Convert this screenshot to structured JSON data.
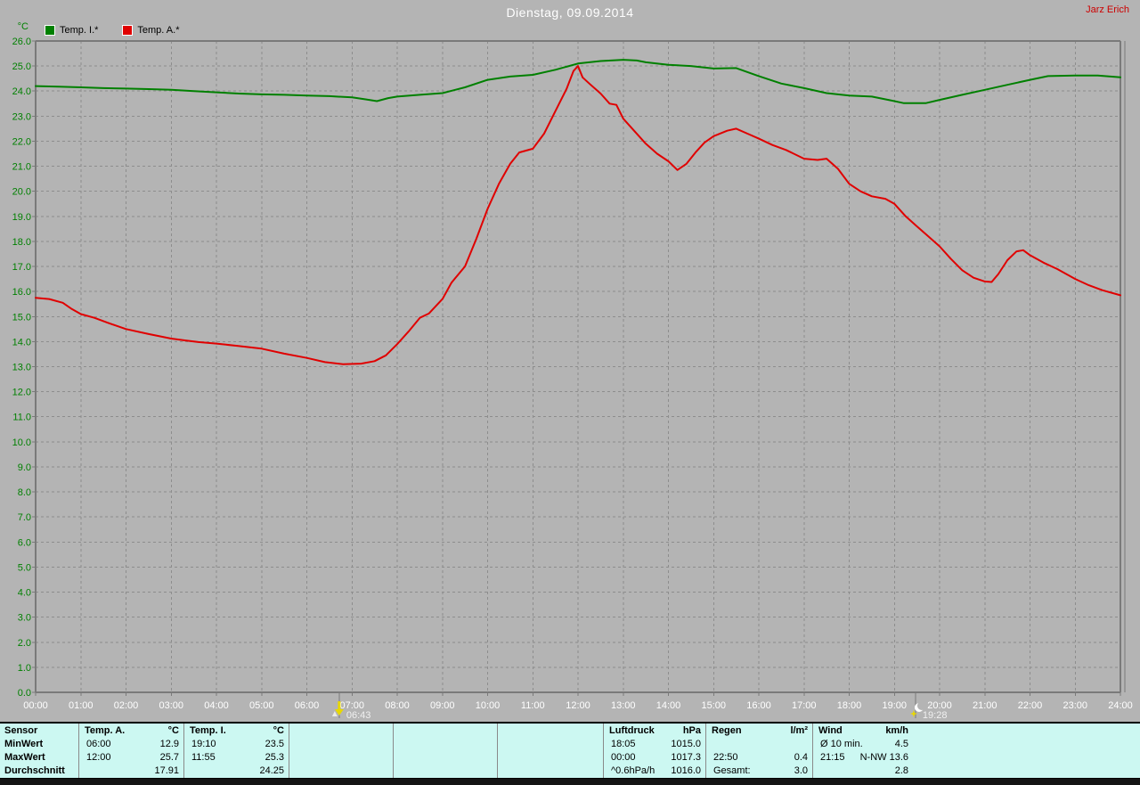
{
  "header": {
    "title": "Dienstag, 09.09.2014",
    "user": "Jarz Erich"
  },
  "legend": {
    "items": [
      {
        "label": "Temp. I.*",
        "color": "#008000"
      },
      {
        "label": "Temp. A.*",
        "color": "#e00000"
      }
    ]
  },
  "chart_data": {
    "type": "line",
    "title": "Dienstag, 09.09.2014",
    "xlabel": "",
    "ylabel": "°C",
    "ylim": [
      0,
      26
    ],
    "xlim_hours": [
      0,
      24
    ],
    "grid": true,
    "legend_position": "top-left",
    "y_ticks": [
      "0.0",
      "1.0",
      "2.0",
      "3.0",
      "4.0",
      "5.0",
      "6.0",
      "7.0",
      "8.0",
      "9.0",
      "10.0",
      "11.0",
      "12.0",
      "13.0",
      "14.0",
      "15.0",
      "16.0",
      "17.0",
      "18.0",
      "19.0",
      "20.0",
      "21.0",
      "22.0",
      "23.0",
      "24.0",
      "25.0",
      "26.0"
    ],
    "x_ticks": [
      "00:00",
      "01:00",
      "02:00",
      "03:00",
      "04:00",
      "05:00",
      "06:00",
      "07:00",
      "08:00",
      "09:00",
      "10:00",
      "11:00",
      "12:00",
      "13:00",
      "14:00",
      "15:00",
      "16:00",
      "17:00",
      "18:00",
      "19:00",
      "20:00",
      "21:00",
      "22:00",
      "23:00",
      "24:00"
    ],
    "series": [
      {
        "name": "Temp. I.*",
        "color": "#008000",
        "points": [
          [
            0,
            24.2
          ],
          [
            0.5,
            24.18
          ],
          [
            1,
            24.15
          ],
          [
            1.5,
            24.12
          ],
          [
            2,
            24.1
          ],
          [
            2.5,
            24.08
          ],
          [
            3,
            24.05
          ],
          [
            3.5,
            24.0
          ],
          [
            4,
            23.95
          ],
          [
            4.5,
            23.9
          ],
          [
            5,
            23.87
          ],
          [
            5.5,
            23.85
          ],
          [
            6,
            23.82
          ],
          [
            6.5,
            23.8
          ],
          [
            7,
            23.75
          ],
          [
            7.3,
            23.67
          ],
          [
            7.55,
            23.6
          ],
          [
            7.8,
            23.72
          ],
          [
            8,
            23.78
          ],
          [
            8.5,
            23.85
          ],
          [
            9,
            23.92
          ],
          [
            9.5,
            24.15
          ],
          [
            10,
            24.45
          ],
          [
            10.5,
            24.58
          ],
          [
            11,
            24.65
          ],
          [
            11.5,
            24.85
          ],
          [
            12,
            25.1
          ],
          [
            12.5,
            25.2
          ],
          [
            13,
            25.25
          ],
          [
            13.3,
            25.22
          ],
          [
            13.5,
            25.15
          ],
          [
            14,
            25.05
          ],
          [
            14.5,
            25.0
          ],
          [
            15,
            24.9
          ],
          [
            15.5,
            24.92
          ],
          [
            16,
            24.6
          ],
          [
            16.5,
            24.3
          ],
          [
            17,
            24.12
          ],
          [
            17.5,
            23.92
          ],
          [
            18,
            23.82
          ],
          [
            18.5,
            23.78
          ],
          [
            19,
            23.6
          ],
          [
            19.2,
            23.52
          ],
          [
            19.7,
            23.52
          ],
          [
            20,
            23.65
          ],
          [
            20.5,
            23.85
          ],
          [
            21,
            24.05
          ],
          [
            21.5,
            24.25
          ],
          [
            22,
            24.45
          ],
          [
            22.4,
            24.6
          ],
          [
            23,
            24.62
          ],
          [
            23.5,
            24.62
          ],
          [
            24,
            24.55
          ]
        ]
      },
      {
        "name": "Temp. A.*",
        "color": "#e00000",
        "points": [
          [
            0,
            15.75
          ],
          [
            0.3,
            15.7
          ],
          [
            0.6,
            15.55
          ],
          [
            0.8,
            15.3
          ],
          [
            1,
            15.1
          ],
          [
            1.3,
            14.95
          ],
          [
            1.6,
            14.75
          ],
          [
            2,
            14.5
          ],
          [
            2.5,
            14.3
          ],
          [
            3,
            14.12
          ],
          [
            3.3,
            14.05
          ],
          [
            3.6,
            13.98
          ],
          [
            4,
            13.92
          ],
          [
            4.5,
            13.82
          ],
          [
            5,
            13.72
          ],
          [
            5.5,
            13.52
          ],
          [
            6,
            13.35
          ],
          [
            6.4,
            13.18
          ],
          [
            6.8,
            13.1
          ],
          [
            7.2,
            13.12
          ],
          [
            7.5,
            13.22
          ],
          [
            7.75,
            13.45
          ],
          [
            8,
            13.9
          ],
          [
            8.25,
            14.4
          ],
          [
            8.5,
            14.95
          ],
          [
            8.7,
            15.12
          ],
          [
            9,
            15.7
          ],
          [
            9.2,
            16.35
          ],
          [
            9.5,
            17.0
          ],
          [
            9.75,
            18.1
          ],
          [
            10,
            19.3
          ],
          [
            10.25,
            20.3
          ],
          [
            10.5,
            21.1
          ],
          [
            10.7,
            21.55
          ],
          [
            11,
            21.7
          ],
          [
            11.25,
            22.3
          ],
          [
            11.5,
            23.2
          ],
          [
            11.75,
            24.1
          ],
          [
            11.9,
            24.8
          ],
          [
            12,
            25.0
          ],
          [
            12.1,
            24.55
          ],
          [
            12.25,
            24.3
          ],
          [
            12.5,
            23.9
          ],
          [
            12.7,
            23.5
          ],
          [
            12.85,
            23.45
          ],
          [
            13,
            22.9
          ],
          [
            13.25,
            22.4
          ],
          [
            13.5,
            21.9
          ],
          [
            13.75,
            21.5
          ],
          [
            14,
            21.2
          ],
          [
            14.2,
            20.85
          ],
          [
            14.4,
            21.1
          ],
          [
            14.6,
            21.55
          ],
          [
            14.8,
            21.95
          ],
          [
            15,
            22.2
          ],
          [
            15.3,
            22.42
          ],
          [
            15.5,
            22.5
          ],
          [
            15.75,
            22.3
          ],
          [
            16,
            22.1
          ],
          [
            16.3,
            21.85
          ],
          [
            16.6,
            21.65
          ],
          [
            17,
            21.3
          ],
          [
            17.3,
            21.25
          ],
          [
            17.5,
            21.3
          ],
          [
            17.75,
            20.9
          ],
          [
            18,
            20.3
          ],
          [
            18.25,
            20.0
          ],
          [
            18.5,
            19.8
          ],
          [
            18.8,
            19.7
          ],
          [
            19,
            19.5
          ],
          [
            19.25,
            19.0
          ],
          [
            19.5,
            18.6
          ],
          [
            19.75,
            18.2
          ],
          [
            20,
            17.8
          ],
          [
            20.25,
            17.3
          ],
          [
            20.5,
            16.85
          ],
          [
            20.75,
            16.55
          ],
          [
            21,
            16.4
          ],
          [
            21.15,
            16.38
          ],
          [
            21.3,
            16.7
          ],
          [
            21.5,
            17.25
          ],
          [
            21.7,
            17.6
          ],
          [
            21.85,
            17.65
          ],
          [
            22,
            17.45
          ],
          [
            22.3,
            17.15
          ],
          [
            22.6,
            16.9
          ],
          [
            23,
            16.5
          ],
          [
            23.3,
            16.25
          ],
          [
            23.6,
            16.05
          ],
          [
            24,
            15.85
          ]
        ]
      }
    ],
    "markers": [
      {
        "type": "sunrise",
        "time": "06:43",
        "hour": 6.7167
      },
      {
        "type": "sunset",
        "time": "19:28",
        "hour": 19.4667
      }
    ]
  },
  "summary": {
    "row_labels": [
      "Sensor",
      "MinWert",
      "MaxWert",
      "Durchschnitt"
    ],
    "columns": [
      {
        "name": "Temp. A.",
        "unit": "°C",
        "rows": [
          [
            "06:00",
            "12.9"
          ],
          [
            "12:00",
            "25.7"
          ],
          [
            "",
            "17.91"
          ]
        ]
      },
      {
        "name": "Temp. I.",
        "unit": "°C",
        "rows": [
          [
            "19:10",
            "23.5"
          ],
          [
            "11:55",
            "25.3"
          ],
          [
            "",
            "24.25"
          ]
        ]
      },
      {
        "name": "",
        "unit": "",
        "rows": [
          [
            "",
            ""
          ],
          [
            "",
            ""
          ],
          [
            "",
            ""
          ]
        ]
      },
      {
        "name": "",
        "unit": "",
        "rows": [
          [
            "",
            ""
          ],
          [
            "",
            ""
          ],
          [
            "",
            ""
          ]
        ]
      },
      {
        "name": "",
        "unit": "",
        "rows": [
          [
            "",
            ""
          ],
          [
            "",
            ""
          ],
          [
            "",
            ""
          ]
        ]
      },
      {
        "name": "Luftdruck",
        "unit": "hPa",
        "rows": [
          [
            "18:05",
            "1015.0"
          ],
          [
            "00:00",
            "1017.3"
          ],
          [
            "^0.6hPa/h",
            "1016.0"
          ]
        ]
      },
      {
        "name": "Regen",
        "unit": "l/m²",
        "rows": [
          [
            "",
            ""
          ],
          [
            "22:50",
            "0.4"
          ],
          [
            "Gesamt:",
            "3.0"
          ]
        ]
      },
      {
        "name": "Wind",
        "unit": "km/h",
        "rows": [
          [
            "Ø 10 min.",
            "4.5"
          ],
          [
            "21:15",
            "N-NW 13.6"
          ],
          [
            "",
            "2.8"
          ]
        ]
      }
    ]
  },
  "colors": {
    "background": "#b4b4b4",
    "grid": "#8d8d8d",
    "axis": "#7a7a7a",
    "temp_i": "#008000",
    "temp_a": "#e00000",
    "y_tick_text": "#008000",
    "x_tick_text": "#ffffff",
    "title_text": "#ffffff",
    "user_text": "#cc0000",
    "marker_text": "#f0f0f0",
    "sun": "#e8d800",
    "moon": "#ffffff",
    "table_bg": "#ccf8f2",
    "table_text": "#000000",
    "table_divider": "#8a8a8a"
  }
}
